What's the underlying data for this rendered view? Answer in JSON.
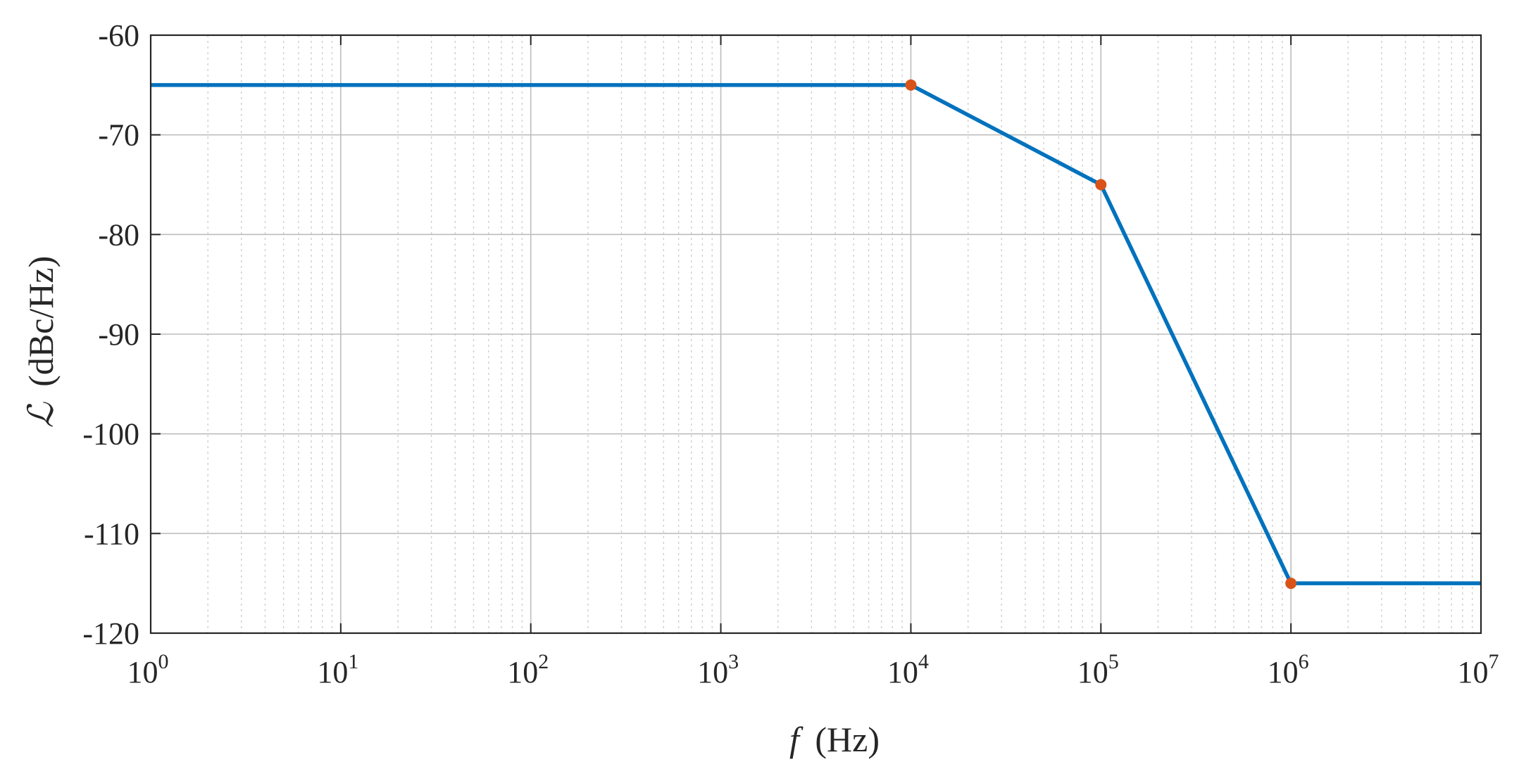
{
  "chart_data": {
    "type": "line",
    "x_scale": "log",
    "y_scale": "linear",
    "xlim": [
      1,
      10000000
    ],
    "ylim": [
      -120,
      -60
    ],
    "x_ticks": [
      {
        "base": "10",
        "exp": "0"
      },
      {
        "base": "10",
        "exp": "1"
      },
      {
        "base": "10",
        "exp": "2"
      },
      {
        "base": "10",
        "exp": "3"
      },
      {
        "base": "10",
        "exp": "4"
      },
      {
        "base": "10",
        "exp": "5"
      },
      {
        "base": "10",
        "exp": "6"
      },
      {
        "base": "10",
        "exp": "7"
      }
    ],
    "y_ticks": [
      "-60",
      "-70",
      "-80",
      "-90",
      "-100",
      "-110",
      "-120"
    ],
    "xlabel": {
      "symbol": "f",
      "unit": "(Hz)"
    },
    "ylabel": {
      "symbol": "ℒ",
      "unit": "(dBc/Hz)"
    },
    "grid": {
      "major": true,
      "minor_x": true
    },
    "series": [
      {
        "color": "#0072BD",
        "x": [
          1,
          10000,
          100000,
          1000000,
          10000000
        ],
        "y": [
          -65,
          -65,
          -75,
          -115,
          -115
        ]
      }
    ],
    "markers": {
      "color": "#D95319",
      "x": [
        10000,
        100000,
        1000000
      ],
      "y": [
        -65,
        -75,
        -115
      ]
    }
  }
}
